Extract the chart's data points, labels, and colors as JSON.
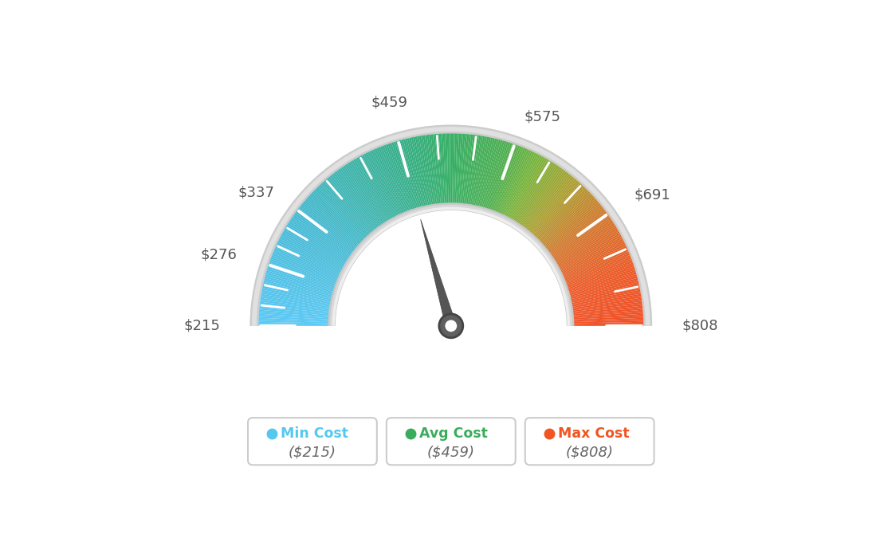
{
  "min_val": 215,
  "max_val": 808,
  "avg_val": 459,
  "tick_labels": [
    215,
    276,
    337,
    459,
    575,
    691,
    808
  ],
  "legend": [
    {
      "label": "Min Cost",
      "value": "($215)",
      "color": "#55c8f0"
    },
    {
      "label": "Avg Cost",
      "value": "($459)",
      "color": "#3aad5c"
    },
    {
      "label": "Max Cost",
      "value": "($808)",
      "color": "#f05522"
    }
  ],
  "color_stops": [
    [
      0.0,
      [
        91,
        200,
        245
      ]
    ],
    [
      0.2,
      [
        70,
        185,
        210
      ]
    ],
    [
      0.4,
      [
        55,
        175,
        140
      ]
    ],
    [
      0.5,
      [
        55,
        175,
        100
      ]
    ],
    [
      0.6,
      [
        80,
        175,
        80
      ]
    ],
    [
      0.65,
      [
        120,
        180,
        60
      ]
    ],
    [
      0.72,
      [
        170,
        160,
        50
      ]
    ],
    [
      0.8,
      [
        210,
        120,
        45
      ]
    ],
    [
      0.9,
      [
        235,
        90,
        40
      ]
    ],
    [
      1.0,
      [
        240,
        80,
        38
      ]
    ]
  ],
  "background": "#ffffff",
  "outer_ring_light": "#d8d8d8",
  "outer_ring_dark": "#c0c0c0",
  "inner_ring_light": "#e8e8e8",
  "inner_ring_dark": "#d0d0d0",
  "needle_color": "#555555",
  "needle_dark": "#444444"
}
